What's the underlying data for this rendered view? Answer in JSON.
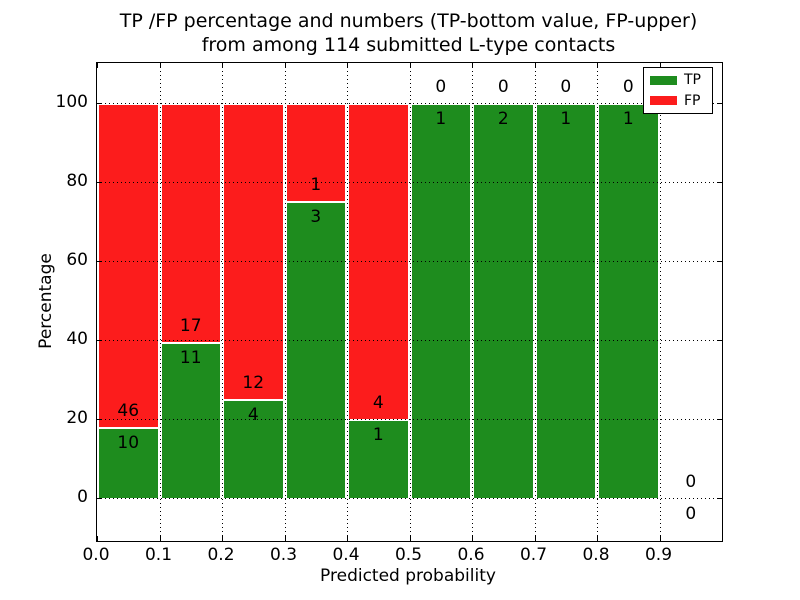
{
  "figure": {
    "title_lines": [
      "TP /FP percentage and numbers (TP-bottom value, FP-upper)",
      "from among 114 submitted L-type contacts"
    ]
  },
  "chart_data": {
    "type": "bar",
    "stacked": true,
    "title": "TP /FP percentage and numbers (TP-bottom value, FP-upper) from among 114 submitted L-type contacts",
    "xlabel": "Predicted probability",
    "ylabel": "Percentage",
    "xlim": [
      0.0,
      1.0
    ],
    "ylim": [
      -11,
      110
    ],
    "grid": "dotted",
    "x_tick_values": [
      0.0,
      0.1,
      0.2,
      0.3,
      0.4,
      0.5,
      0.6,
      0.7,
      0.8,
      0.9
    ],
    "x_tick_labels": [
      "0.0",
      "0.1",
      "0.2",
      "0.3",
      "0.4",
      "0.5",
      "0.6",
      "0.7",
      "0.8",
      "0.9"
    ],
    "y_tick_values": [
      0,
      20,
      40,
      60,
      80,
      100
    ],
    "y_tick_labels": [
      "0",
      "20",
      "40",
      "60",
      "80",
      "100"
    ],
    "legend": {
      "position": "upper-right",
      "entries": [
        {
          "label": "TP",
          "color": "#1e8c1e"
        },
        {
          "label": "FP",
          "color": "#fc1c1c"
        }
      ]
    },
    "colors": {
      "tp": "#1e8c1e",
      "fp": "#fc1c1c",
      "grid": "#000000",
      "text": "#000000",
      "background": "#ffffff"
    },
    "bins": [
      {
        "x0": 0.0,
        "x1": 0.1,
        "tp_count": 10,
        "fp_count": 46,
        "tp_pct": 17.86,
        "fp_pct": 82.14
      },
      {
        "x0": 0.1,
        "x1": 0.2,
        "tp_count": 11,
        "fp_count": 17,
        "tp_pct": 39.29,
        "fp_pct": 60.71
      },
      {
        "x0": 0.2,
        "x1": 0.3,
        "tp_count": 4,
        "fp_count": 12,
        "tp_pct": 25.0,
        "fp_pct": 75.0
      },
      {
        "x0": 0.3,
        "x1": 0.4,
        "tp_count": 3,
        "fp_count": 1,
        "tp_pct": 75.0,
        "fp_pct": 25.0
      },
      {
        "x0": 0.4,
        "x1": 0.5,
        "tp_count": 1,
        "fp_count": 4,
        "tp_pct": 20.0,
        "fp_pct": 80.0
      },
      {
        "x0": 0.5,
        "x1": 0.6,
        "tp_count": 1,
        "fp_count": 0,
        "tp_pct": 100.0,
        "fp_pct": 0.0
      },
      {
        "x0": 0.6,
        "x1": 0.7,
        "tp_count": 2,
        "fp_count": 0,
        "tp_pct": 100.0,
        "fp_pct": 0.0
      },
      {
        "x0": 0.7,
        "x1": 0.8,
        "tp_count": 1,
        "fp_count": 0,
        "tp_pct": 100.0,
        "fp_pct": 0.0
      },
      {
        "x0": 0.8,
        "x1": 0.9,
        "tp_count": 1,
        "fp_count": 0,
        "tp_pct": 100.0,
        "fp_pct": 0.0
      },
      {
        "x0": 0.9,
        "x1": 1.0,
        "tp_count": 0,
        "fp_count": 0,
        "tp_pct": 0.0,
        "fp_pct": 0.0
      }
    ]
  }
}
